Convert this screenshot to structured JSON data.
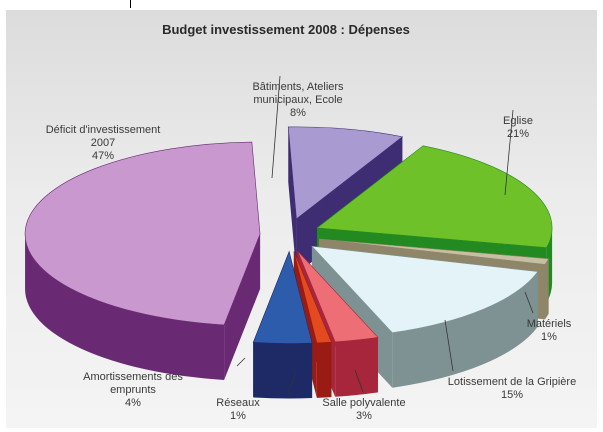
{
  "chart_data": {
    "type": "pie",
    "title": "Budget investissement 2008 : Dépenses",
    "slices": [
      {
        "label_lines": [
          "Bâtiments, Ateliers",
          "municipaux, Ecole",
          "8%"
        ],
        "value": 8,
        "color": "#a99ad2",
        "side": "#3f2d73"
      },
      {
        "label_lines": [
          "Eglise",
          "21%"
        ],
        "value": 21,
        "color": "#6fc12a",
        "side": "#238a22"
      },
      {
        "label_lines": [
          "Matériels",
          "1%"
        ],
        "value": 1,
        "color": "#c7bfa3",
        "side": "#8f866a"
      },
      {
        "label_lines": [
          "Lotissement de la Gripière",
          "15%"
        ],
        "value": 15,
        "color": "#e3f3f7",
        "side": "#7e9293"
      },
      {
        "label_lines": [
          "Salle polyvalente",
          "3%"
        ],
        "value": 3,
        "color": "#ee6e76",
        "side": "#a8263b"
      },
      {
        "label_lines": [
          "Réseaux",
          "1%"
        ],
        "value": 1,
        "color": "#e44a20",
        "side": "#9a1b14"
      },
      {
        "label_lines": [
          "Amortissements des",
          "emprunts",
          "4%"
        ],
        "value": 4,
        "color": "#2e5cad",
        "side": "#1d2a66"
      },
      {
        "label_lines": [
          "Déficit d'investissement",
          "2007",
          "47%"
        ],
        "value": 47,
        "color": "#c898cf",
        "side": "#6a2a73"
      }
    ],
    "legend": "none"
  }
}
